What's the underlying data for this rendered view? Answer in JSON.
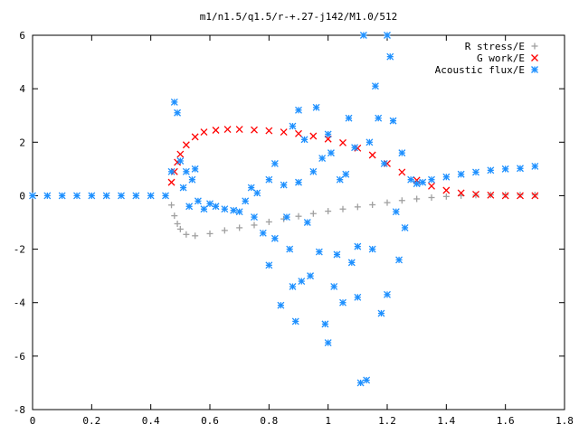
{
  "chart_data": {
    "type": "scatter",
    "title": "m1/n1.5/q1.5/r-+.27-j142/M1.0/512",
    "xlim": [
      0,
      1.8
    ],
    "ylim": [
      -8,
      6
    ],
    "x_ticks": [
      "0",
      "0.2",
      "0.4",
      "0.6",
      "0.8",
      "1",
      "1.2",
      "1.4",
      "1.6",
      "1.8"
    ],
    "y_ticks": [
      "6",
      "4",
      "2",
      "0",
      "-2",
      "-4",
      "-6",
      "-8"
    ],
    "x_tick_values": [
      0,
      0.2,
      0.4,
      0.6,
      0.8,
      1.0,
      1.2,
      1.4,
      1.6,
      1.8
    ],
    "y_tick_values": [
      6,
      4,
      2,
      0,
      -2,
      -4,
      -6,
      -8
    ],
    "legend_position": "top-right",
    "grid": false,
    "series": [
      {
        "name": "R stress/E",
        "marker": "plus",
        "color": "#a0a0a0",
        "x": [
          0.47,
          0.48,
          0.49,
          0.5,
          0.52,
          0.55,
          0.6,
          0.65,
          0.7,
          0.75,
          0.8,
          0.85,
          0.9,
          0.95,
          1.0,
          1.05,
          1.1,
          1.15,
          1.2,
          1.25,
          1.3,
          1.35,
          1.4,
          1.45,
          1.5,
          1.55,
          1.6,
          1.65,
          1.7
        ],
        "y": [
          -0.35,
          -0.75,
          -1.05,
          -1.25,
          -1.45,
          -1.5,
          -1.42,
          -1.3,
          -1.2,
          -1.1,
          -0.98,
          -0.87,
          -0.77,
          -0.67,
          -0.58,
          -0.5,
          -0.42,
          -0.34,
          -0.26,
          -0.18,
          -0.12,
          -0.07,
          -0.03,
          0.0,
          0.02,
          0.03,
          0.03,
          0.03,
          0.03
        ]
      },
      {
        "name": "G work/E",
        "marker": "cross",
        "color": "#ff0000",
        "x": [
          0.47,
          0.48,
          0.49,
          0.5,
          0.52,
          0.55,
          0.58,
          0.62,
          0.66,
          0.7,
          0.75,
          0.8,
          0.85,
          0.9,
          0.95,
          1.0,
          1.05,
          1.1,
          1.15,
          1.2,
          1.25,
          1.3,
          1.35,
          1.4,
          1.45,
          1.5,
          1.55,
          1.6,
          1.65,
          1.7
        ],
        "y": [
          0.5,
          0.9,
          1.25,
          1.55,
          1.9,
          2.2,
          2.38,
          2.45,
          2.48,
          2.48,
          2.46,
          2.43,
          2.38,
          2.32,
          2.23,
          2.12,
          1.98,
          1.78,
          1.52,
          1.2,
          0.88,
          0.58,
          0.36,
          0.2,
          0.1,
          0.05,
          0.02,
          0.0,
          0.0,
          0.0
        ]
      },
      {
        "name": "Acoustic flux/E",
        "marker": "star",
        "color": "#1e90ff",
        "x": [
          0.0,
          0.05,
          0.1,
          0.15,
          0.2,
          0.25,
          0.3,
          0.35,
          0.4,
          0.45,
          0.47,
          0.48,
          0.49,
          0.5,
          0.51,
          0.52,
          0.53,
          0.54,
          0.55,
          0.56,
          0.58,
          0.6,
          0.62,
          0.65,
          0.68,
          0.7,
          0.72,
          0.74,
          0.75,
          0.76,
          0.78,
          0.8,
          0.8,
          0.82,
          0.82,
          0.84,
          0.85,
          0.86,
          0.87,
          0.88,
          0.88,
          0.89,
          0.9,
          0.9,
          0.91,
          0.92,
          0.93,
          0.94,
          0.95,
          0.96,
          0.97,
          0.98,
          0.99,
          1.0,
          1.0,
          1.01,
          1.02,
          1.03,
          1.04,
          1.05,
          1.06,
          1.07,
          1.08,
          1.09,
          1.1,
          1.1,
          1.11,
          1.12,
          1.13,
          1.14,
          1.15,
          1.16,
          1.17,
          1.18,
          1.19,
          1.2,
          1.2,
          1.21,
          1.22,
          1.23,
          1.24,
          1.25,
          1.26,
          1.28,
          1.3,
          1.32,
          1.35,
          1.4,
          1.45,
          1.5,
          1.55,
          1.6,
          1.65,
          1.7
        ],
        "y": [
          0.0,
          0.0,
          0.0,
          0.0,
          0.0,
          0.0,
          0.0,
          0.0,
          0.0,
          0.0,
          0.9,
          3.5,
          3.1,
          1.3,
          0.3,
          0.9,
          -0.4,
          0.6,
          1.0,
          -0.2,
          -0.5,
          -0.3,
          -0.4,
          -0.5,
          -0.55,
          -0.6,
          -0.2,
          0.3,
          -0.8,
          0.1,
          -1.4,
          0.6,
          -2.6,
          1.2,
          -1.6,
          -4.1,
          0.4,
          -0.8,
          -2.0,
          2.6,
          -3.4,
          -4.7,
          3.2,
          0.5,
          -3.2,
          2.1,
          -1.0,
          -3.0,
          0.9,
          3.3,
          -2.1,
          1.4,
          -4.8,
          -5.5,
          2.3,
          1.6,
          -3.4,
          -2.2,
          0.6,
          -4.0,
          0.8,
          2.9,
          -2.5,
          1.8,
          -1.9,
          -3.8,
          -7.0,
          6.0,
          -6.9,
          2.0,
          -2.0,
          4.1,
          2.9,
          -4.4,
          1.2,
          -3.7,
          6.0,
          5.2,
          2.8,
          -0.6,
          -2.4,
          1.6,
          -1.2,
          0.6,
          0.45,
          0.5,
          0.6,
          0.7,
          0.8,
          0.88,
          0.95,
          1.0,
          1.02,
          1.1
        ]
      }
    ]
  }
}
